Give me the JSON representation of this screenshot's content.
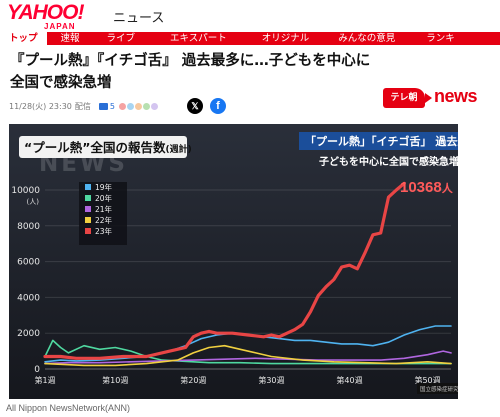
{
  "brand": {
    "logo": "YAHOO!",
    "logo_sub": "JAPAN",
    "service": "ニュース"
  },
  "nav": {
    "items": [
      "トップ",
      "速報",
      "ライブ",
      "エキスパート",
      "オリジナル",
      "みんなの意見",
      "ランキ"
    ]
  },
  "article": {
    "headline": "『プール熱』『イチゴ舌』 過去最多に…子どもを中心に全国で感染急増",
    "timestamp": "11/28(火) 23:30",
    "timestamp_suffix": "配信",
    "comment_count": "5"
  },
  "reactions": {
    "colors": [
      "#f5a3a3",
      "#a8d5f2",
      "#f7c9a0",
      "#b8e0b0",
      "#d4c5f0"
    ]
  },
  "share": {
    "x_glyph": "𝕏",
    "fb_glyph": "f"
  },
  "station": {
    "badge": "テレ朝",
    "news": "news"
  },
  "credit": "All Nippon NewsNetwork(ANN)",
  "video": {
    "title_quoted": "“プール熱”",
    "title_rest": "全国の報告数",
    "title_period": "(週計)",
    "banner_line1": "「プール熱」「イチゴ舌」 過去最多に",
    "banner_line2": "子どもを中心に全国で感染急増",
    "watermark": "NEWS",
    "callout": "10368",
    "callout_unit": "人",
    "source": "国立感染症研究所より"
  },
  "chart_data": {
    "type": "line",
    "ylabel": "(人)",
    "ylim": [
      0,
      10000
    ],
    "yticks": [
      "10000",
      "8000",
      "6000",
      "4000",
      "2000",
      "0"
    ],
    "yticks_values": [
      10000,
      8000,
      6000,
      4000,
      2000,
      0
    ],
    "xticks": [
      "第1週",
      "第10週",
      "第20週",
      "第30週",
      "第40週",
      "第50週"
    ],
    "xticks_values": [
      1,
      10,
      20,
      30,
      40,
      50
    ],
    "xlim": [
      1,
      53
    ],
    "series": [
      {
        "name": "19年",
        "color": "#4fb3f0",
        "x": [
          1,
          3,
          5,
          8,
          11,
          14,
          17,
          19,
          21,
          23,
          25,
          27,
          29,
          31,
          33,
          35,
          37,
          39,
          41,
          43,
          45,
          47,
          49,
          51,
          53
        ],
        "y": [
          400,
          500,
          450,
          500,
          600,
          700,
          1000,
          1300,
          1700,
          1900,
          2000,
          1900,
          1800,
          1700,
          1600,
          1600,
          1500,
          1400,
          1400,
          1300,
          1500,
          1900,
          2200,
          2400,
          2400
        ]
      },
      {
        "name": "20年",
        "color": "#4fd8a0",
        "x": [
          1,
          2,
          3,
          4,
          6,
          8,
          10,
          12,
          14,
          16,
          18,
          20,
          22,
          26,
          30,
          34,
          38,
          42,
          46,
          50,
          53
        ],
        "y": [
          700,
          1600,
          1200,
          900,
          1300,
          1100,
          1200,
          1000,
          700,
          500,
          450,
          400,
          350,
          350,
          300,
          300,
          300,
          300,
          300,
          300,
          300
        ]
      },
      {
        "name": "21年",
        "color": "#b066e0",
        "x": [
          1,
          4,
          8,
          12,
          16,
          20,
          24,
          28,
          32,
          36,
          40,
          44,
          47,
          50,
          52,
          53
        ],
        "y": [
          300,
          350,
          350,
          400,
          450,
          500,
          550,
          600,
          550,
          500,
          500,
          500,
          600,
          800,
          1000,
          900
        ]
      },
      {
        "name": "22年",
        "color": "#f0d040",
        "x": [
          1,
          6,
          10,
          14,
          18,
          20,
          22,
          24,
          26,
          28,
          30,
          34,
          38,
          42,
          46,
          50,
          53
        ],
        "y": [
          300,
          200,
          200,
          300,
          500,
          900,
          1200,
          1300,
          1100,
          900,
          700,
          500,
          400,
          350,
          300,
          400,
          300
        ]
      },
      {
        "name": "23年",
        "color": "#e84545",
        "x": [
          1,
          3,
          5,
          8,
          11,
          14,
          17,
          19,
          20,
          21,
          22,
          23,
          25,
          27,
          29,
          30,
          31,
          32,
          33,
          34,
          35,
          36,
          37,
          38,
          39,
          40,
          41,
          42,
          43,
          44,
          45,
          46,
          47
        ],
        "y": [
          700,
          700,
          600,
          600,
          700,
          700,
          1000,
          1200,
          1800,
          2000,
          2100,
          2000,
          2000,
          1900,
          1800,
          1900,
          1800,
          2000,
          2200,
          2500,
          3200,
          4100,
          4600,
          5000,
          5700,
          5800,
          5600,
          6500,
          7500,
          7600,
          9600,
          10000,
          10368
        ]
      }
    ]
  }
}
